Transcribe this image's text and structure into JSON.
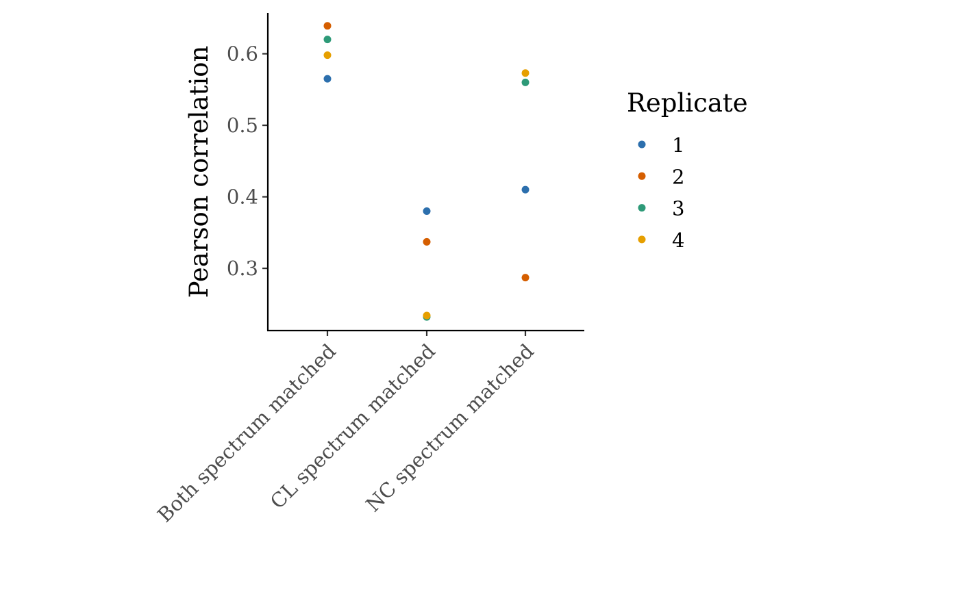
{
  "chart_data": {
    "type": "scatter",
    "title": "",
    "xlabel": "",
    "ylabel": "Pearson correlation",
    "categories": [
      "Both spectrum matched",
      "CL spectrum matched",
      "NC spectrum matched"
    ],
    "ylim": [
      0.213,
      0.657
    ],
    "yticks": [
      0.3,
      0.4,
      0.5,
      0.6
    ],
    "ytick_labels": [
      "0.3",
      "0.4",
      "0.5",
      "0.6"
    ],
    "grid": false,
    "legend": {
      "title": "Replicate",
      "position": "right"
    },
    "series": [
      {
        "name": "1",
        "color": "#2c6fad",
        "values": [
          0.565,
          0.38,
          0.41
        ]
      },
      {
        "name": "2",
        "color": "#d55e00",
        "values": [
          0.639,
          0.337,
          0.287
        ]
      },
      {
        "name": "3",
        "color": "#2e9a78",
        "values": [
          0.62,
          0.232,
          0.56
        ]
      },
      {
        "name": "4",
        "color": "#e69f00",
        "values": [
          0.598,
          0.234,
          0.573
        ]
      }
    ]
  }
}
